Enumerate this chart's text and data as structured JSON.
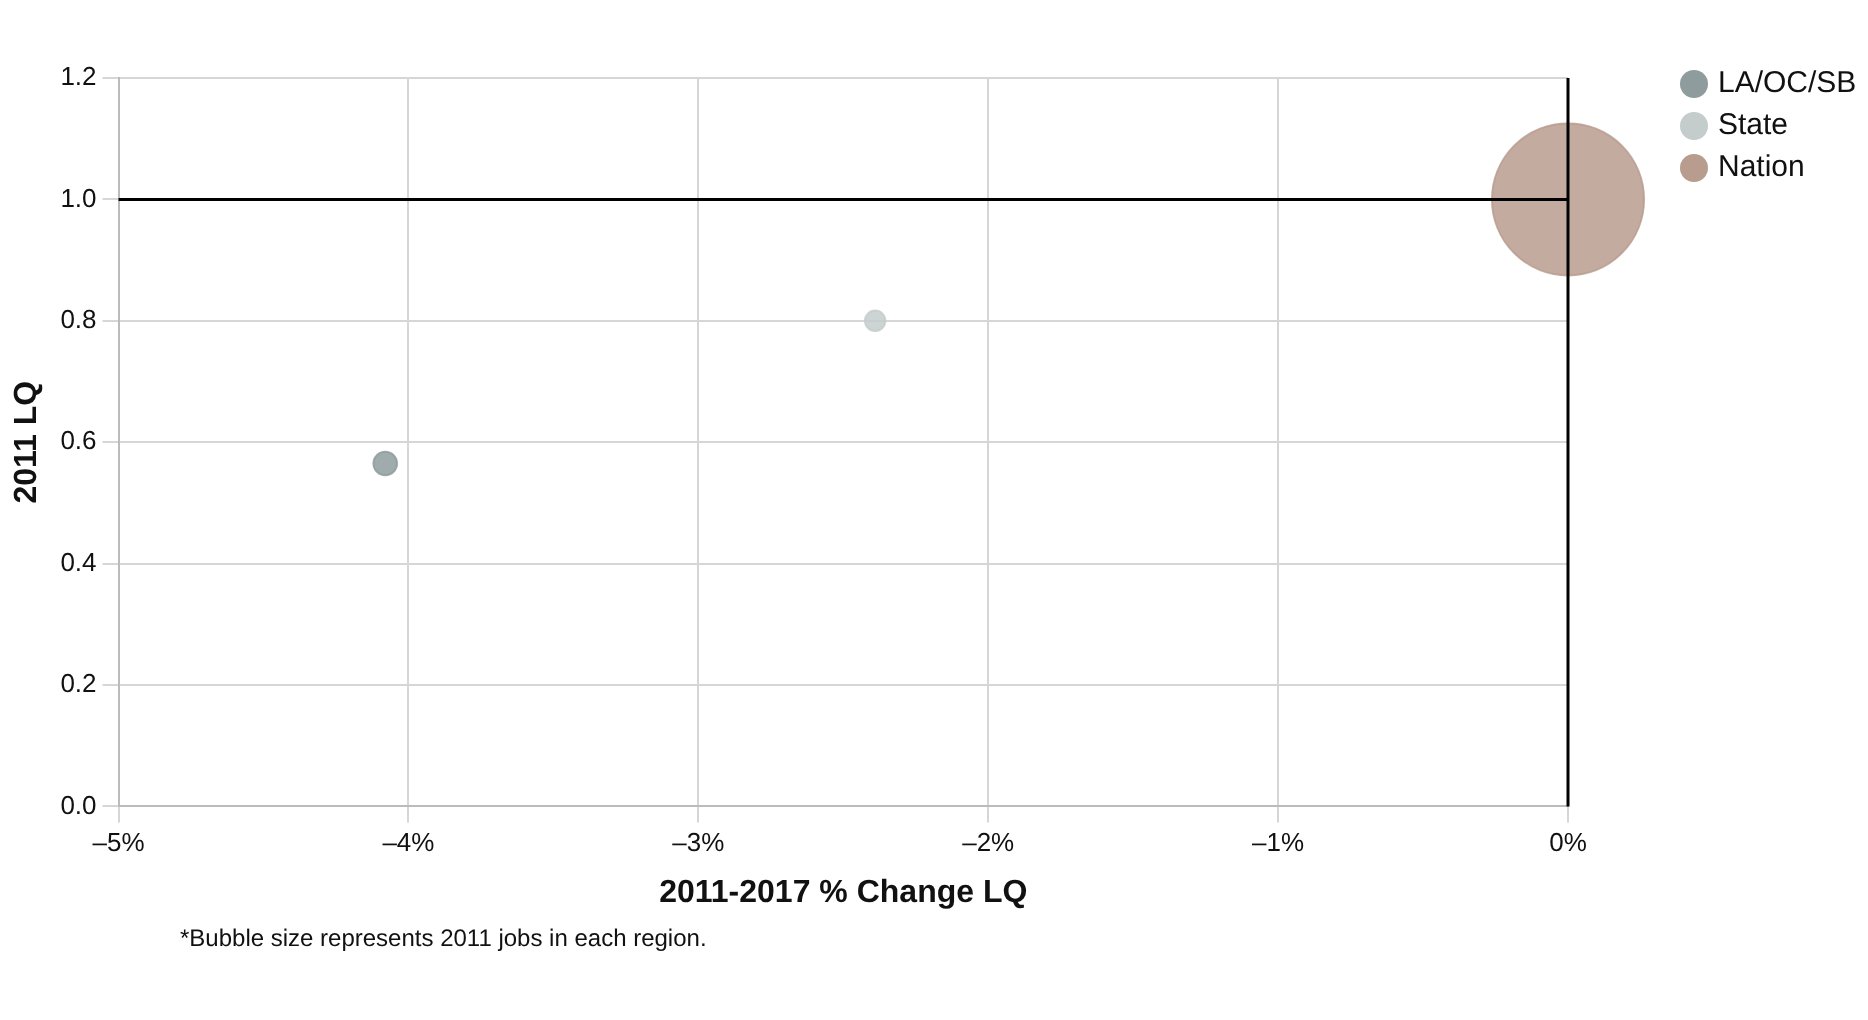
{
  "chart_data": {
    "type": "bubble",
    "xlabel": "2011-2017 % Change LQ",
    "ylabel": "2011 LQ",
    "annotations": [
      "*Bubble size represents 2011 jobs in each region."
    ],
    "series": [
      {
        "name": "LA/OC/SB",
        "color": "#8e9c9e",
        "x": [
          -4.08
        ],
        "values": [
          0.565
        ],
        "sizes": [
          0.024
        ]
      },
      {
        "name": "State",
        "color": "#c4cccc",
        "x": [
          -2.39
        ],
        "values": [
          0.8
        ],
        "sizes": [
          0.018
        ]
      },
      {
        "name": "Nation",
        "color": "#b89c8e",
        "x": [
          0
        ],
        "values": [
          1.0
        ],
        "sizes": [
          1
        ]
      }
    ],
    "xlim": [
      -5,
      0
    ],
    "xticks": [
      {
        "value": -5,
        "label": "–5%"
      },
      {
        "value": -4,
        "label": "–4%"
      },
      {
        "value": -3,
        "label": "–3%"
      },
      {
        "value": -2,
        "label": "–2%"
      },
      {
        "value": -1,
        "label": "–1%"
      },
      {
        "value": 0,
        "label": "0%"
      }
    ],
    "ylim": [
      0,
      1.2
    ],
    "yticks": [
      {
        "value": 0,
        "label": "0.0"
      },
      {
        "value": 0.2,
        "label": "0.2"
      },
      {
        "value": 0.4,
        "label": "0.4"
      },
      {
        "value": 0.6,
        "label": "0.6"
      },
      {
        "value": 0.8,
        "label": "0.8"
      },
      {
        "value": 1,
        "label": "1.0"
      },
      {
        "value": 1.2,
        "label": "1.2"
      }
    ],
    "ref_lines": [
      {
        "axis": "y",
        "value": 1,
        "color": "#000000"
      },
      {
        "axis": "x",
        "value": 0,
        "color": "#000000"
      }
    ],
    "grid": true,
    "legend": "top right",
    "marker": "circle"
  }
}
